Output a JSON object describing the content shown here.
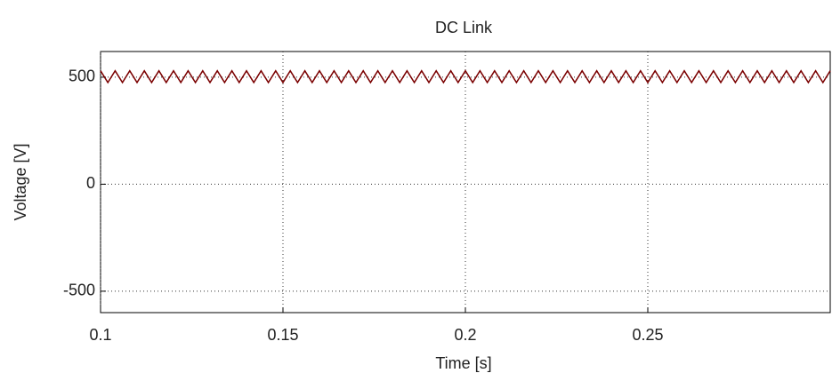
{
  "chart_data": {
    "type": "line",
    "title": "DC Link",
    "xlabel": "Time [s]",
    "ylabel": "Voltage [V]",
    "x": [
      0.1,
      0.102,
      0.104,
      0.106,
      0.108,
      0.11,
      0.112,
      0.114,
      0.116,
      0.118,
      0.12,
      0.122,
      0.124,
      0.126,
      0.128,
      0.13,
      0.132,
      0.134,
      0.136,
      0.138,
      0.14,
      0.142,
      0.144,
      0.146,
      0.148,
      0.15,
      0.152,
      0.154,
      0.156,
      0.158,
      0.16,
      0.162,
      0.164,
      0.166,
      0.168,
      0.17,
      0.172,
      0.174,
      0.176,
      0.178,
      0.18,
      0.182,
      0.184,
      0.186,
      0.188,
      0.19,
      0.192,
      0.194,
      0.196,
      0.198,
      0.2,
      0.202,
      0.204,
      0.206,
      0.208,
      0.21,
      0.212,
      0.214,
      0.216,
      0.218,
      0.22,
      0.222,
      0.224,
      0.226,
      0.228,
      0.23,
      0.232,
      0.234,
      0.236,
      0.238,
      0.24,
      0.242,
      0.244,
      0.246,
      0.248,
      0.25,
      0.252,
      0.254,
      0.256,
      0.258,
      0.26,
      0.262,
      0.264,
      0.266,
      0.268,
      0.27,
      0.272,
      0.274,
      0.276,
      0.278,
      0.28,
      0.282,
      0.284,
      0.286,
      0.288,
      0.29,
      0.292,
      0.294,
      0.296,
      0.298,
      0.3
    ],
    "values": [
      530,
      475,
      530,
      475,
      530,
      475,
      530,
      475,
      530,
      475,
      530,
      475,
      530,
      475,
      530,
      475,
      530,
      475,
      530,
      475,
      530,
      475,
      530,
      475,
      530,
      475,
      530,
      475,
      530,
      475,
      530,
      475,
      530,
      475,
      530,
      475,
      530,
      475,
      530,
      475,
      530,
      475,
      530,
      475,
      530,
      475,
      530,
      475,
      530,
      475,
      530,
      475,
      530,
      475,
      530,
      475,
      530,
      475,
      530,
      475,
      530,
      475,
      530,
      475,
      530,
      475,
      530,
      475,
      530,
      475,
      530,
      475,
      530,
      475,
      530,
      475,
      530,
      475,
      530,
      475,
      530,
      475,
      530,
      475,
      530,
      475,
      530,
      475,
      530,
      475,
      530,
      475,
      530,
      475,
      530,
      475,
      530,
      475,
      530,
      475,
      530
    ],
    "color": "#7a0000",
    "xlim": [
      0.1,
      0.3
    ],
    "ylim": [
      -600,
      620
    ],
    "xticks": [
      0.1,
      0.15,
      0.2,
      0.25
    ],
    "yticks": [
      -500,
      0,
      500
    ],
    "grid": true
  }
}
